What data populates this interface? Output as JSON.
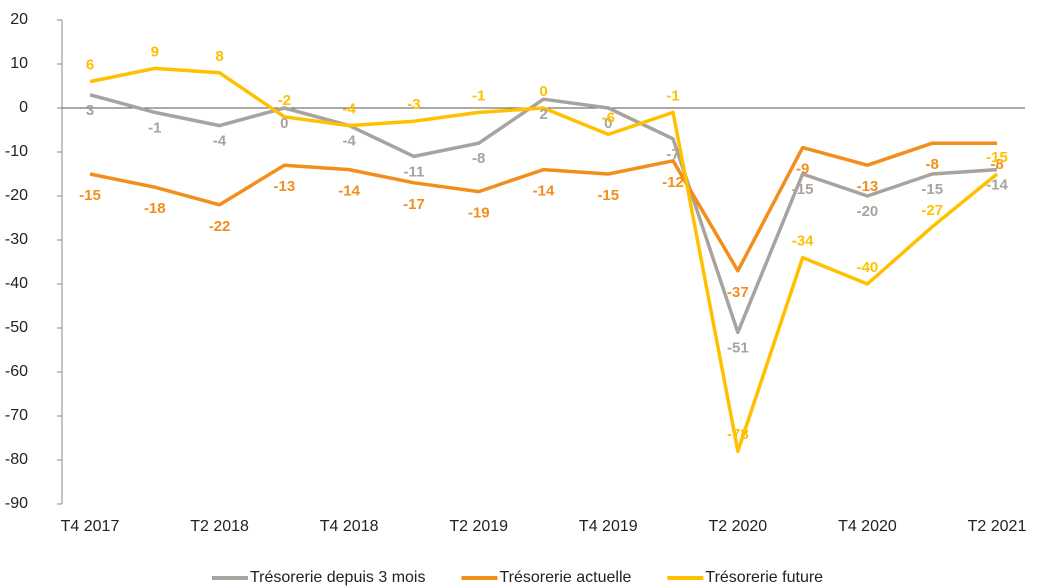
{
  "chart_data": {
    "type": "line",
    "categories": [
      "T4 2017",
      null,
      "T2 2018",
      null,
      "T4 2018",
      null,
      "T2 2019",
      null,
      "T4 2019",
      null,
      "T2 2020",
      null,
      "T4 2020",
      null,
      "T2 2021"
    ],
    "series": [
      {
        "name": "Trésorerie depuis 3 mois",
        "color": "#a8a39d",
        "values": [
          3,
          -1,
          -4,
          0,
          -4,
          -11,
          -8,
          2,
          0,
          -7,
          -51,
          -15,
          -20,
          -15,
          -14
        ]
      },
      {
        "name": "Trésorerie actuelle",
        "color": "#f28e1c",
        "values": [
          -15,
          -18,
          -22,
          -13,
          -14,
          -17,
          -19,
          -14,
          -15,
          -12,
          -37,
          -9,
          -13,
          -8,
          -8
        ]
      },
      {
        "name": "Trésorerie future",
        "color": "#ffc000",
        "values": [
          6,
          9,
          8,
          -2,
          -4,
          -3,
          -1,
          0,
          -6,
          -1,
          -78,
          -34,
          -40,
          -27,
          -15
        ]
      }
    ],
    "ylim": [
      -90,
      20
    ],
    "yticks": [
      -90,
      -80,
      -70,
      -60,
      -50,
      -40,
      -30,
      -20,
      -10,
      0,
      10,
      20
    ],
    "grid": false,
    "legend": "bottom"
  }
}
